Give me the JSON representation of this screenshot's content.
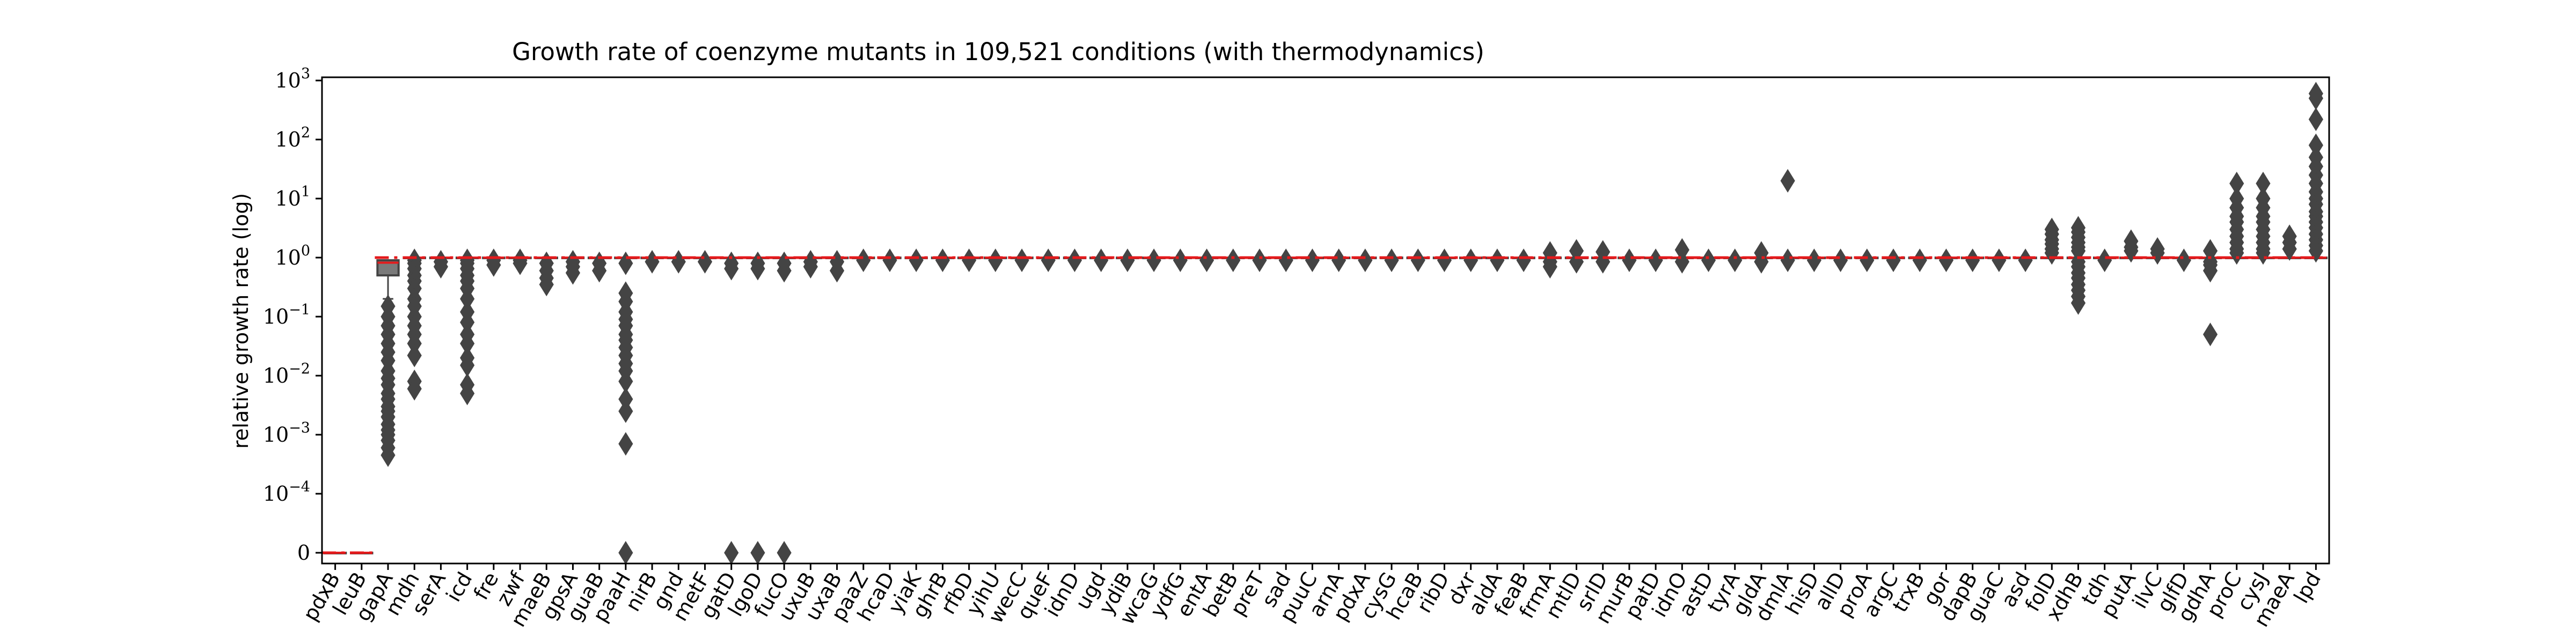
{
  "chart_data": {
    "type": "box",
    "title": "Growth rate of coenzyme mutants in 109,521 conditions (with thermodynamics)",
    "ylabel": "relative growth rate (log)",
    "xlabel": "",
    "yscale": "symlog",
    "ylim": [
      0,
      1000
    ],
    "yticks": [
      {
        "value": 0,
        "base": "0",
        "exp": ""
      },
      {
        "value": 0.0001,
        "base": "10",
        "exp": "−4"
      },
      {
        "value": 0.001,
        "base": "10",
        "exp": "−3"
      },
      {
        "value": 0.01,
        "base": "10",
        "exp": "−2"
      },
      {
        "value": 0.1,
        "base": "10",
        "exp": "−1"
      },
      {
        "value": 1,
        "base": "10",
        "exp": "0"
      },
      {
        "value": 10,
        "base": "10",
        "exp": "1"
      },
      {
        "value": 100,
        "base": "10",
        "exp": "2"
      },
      {
        "value": 1000,
        "base": "10",
        "exp": "3"
      }
    ],
    "reference_line": {
      "value": 1,
      "color": "#e41a1c"
    },
    "colors": {
      "box_fill": "#7a7a7a",
      "box_edge": "#444444",
      "outlier": "#444444",
      "median": "#e41a1c"
    },
    "categories": [
      "pdxB",
      "leuB",
      "gapA",
      "mdh",
      "serA",
      "icd",
      "fre",
      "zwf",
      "maeB",
      "gpsA",
      "guaB",
      "paaH",
      "nirB",
      "gnd",
      "metF",
      "gatD",
      "lgoD",
      "fucO",
      "uxuB",
      "uxaB",
      "paaZ",
      "hcaD",
      "yiaK",
      "ghrB",
      "rfbD",
      "yihU",
      "wecC",
      "queF",
      "idnD",
      "ugd",
      "ydiB",
      "wcaG",
      "ydfG",
      "entA",
      "betB",
      "preT",
      "sad",
      "puuC",
      "arnA",
      "pdxA",
      "cysG",
      "hcaB",
      "ribD",
      "dxr",
      "aldA",
      "feaB",
      "frmA",
      "mtlD",
      "srlD",
      "murB",
      "patD",
      "idnO",
      "astD",
      "tyrA",
      "gldA",
      "dmlA",
      "hisD",
      "allD",
      "proA",
      "argC",
      "trxB",
      "gor",
      "dapB",
      "guaC",
      "asd",
      "folD",
      "xdhB",
      "tdh",
      "putA",
      "ilvC",
      "glfD",
      "gdhA",
      "proC",
      "cysJ",
      "maeA",
      "lpd"
    ],
    "boxes": [
      {
        "q1": 0,
        "median": 0,
        "q3": 0,
        "whislo": 0,
        "whishi": 0,
        "outliers": []
      },
      {
        "q1": 0,
        "median": 0,
        "q3": 0,
        "whislo": 0,
        "whishi": 0,
        "outliers": []
      },
      {
        "q1": 0.5,
        "median": 0.82,
        "q3": 0.9,
        "whislo": 0.2,
        "whishi": 0.9,
        "outliers": [
          0.15,
          0.1,
          0.07,
          0.05,
          0.035,
          0.025,
          0.018,
          0.012,
          0.009,
          0.007,
          0.005,
          0.004,
          0.003,
          0.0025,
          0.002,
          0.0015,
          0.0012,
          0.001,
          0.0008,
          0.0006,
          0.00045
        ]
      },
      {
        "q1": 1,
        "median": 1,
        "q3": 1,
        "whislo": 1,
        "whishi": 1,
        "outliers": [
          0.9,
          0.8,
          0.65,
          0.5,
          0.4,
          0.3,
          0.2,
          0.15,
          0.1,
          0.07,
          0.05,
          0.035,
          0.022,
          0.008,
          0.006
        ]
      },
      {
        "q1": 1,
        "median": 1,
        "q3": 1,
        "whislo": 1,
        "whishi": 1,
        "outliers": [
          0.85,
          0.7
        ]
      },
      {
        "q1": 1,
        "median": 1,
        "q3": 1,
        "whislo": 1,
        "whishi": 1,
        "outliers": [
          0.9,
          0.8,
          0.65,
          0.5,
          0.4,
          0.3,
          0.2,
          0.12,
          0.08,
          0.05,
          0.035,
          0.02,
          0.015,
          0.007,
          0.005
        ]
      },
      {
        "q1": 1,
        "median": 1,
        "q3": 1,
        "whislo": 1,
        "whishi": 1,
        "outliers": [
          0.9,
          0.75
        ]
      },
      {
        "q1": 1,
        "median": 1,
        "q3": 1,
        "whislo": 1,
        "whishi": 1,
        "outliers": [
          0.9,
          0.8
        ]
      },
      {
        "q1": 1,
        "median": 1,
        "q3": 1,
        "whislo": 1,
        "whishi": 1,
        "outliers": [
          0.8,
          0.6,
          0.45,
          0.35
        ]
      },
      {
        "q1": 1,
        "median": 1,
        "q3": 1,
        "whislo": 1,
        "whishi": 1,
        "outliers": [
          0.85,
          0.7,
          0.55
        ]
      },
      {
        "q1": 1,
        "median": 1,
        "q3": 1,
        "whislo": 1,
        "whishi": 1,
        "outliers": [
          0.8,
          0.6
        ]
      },
      {
        "q1": 1,
        "median": 1,
        "q3": 1,
        "whislo": 1,
        "whishi": 1,
        "outliers": [
          0.8,
          0.25,
          0.18,
          0.12,
          0.09,
          0.07,
          0.05,
          0.04,
          0.03,
          0.022,
          0.016,
          0.012,
          0.008,
          0.004,
          0.0025,
          0.0007,
          0
        ]
      },
      {
        "q1": 1,
        "median": 1,
        "q3": 1,
        "whislo": 1,
        "whishi": 1,
        "outliers": [
          0.85
        ]
      },
      {
        "q1": 1,
        "median": 1,
        "q3": 1,
        "whislo": 1,
        "whishi": 1,
        "outliers": [
          0.85
        ]
      },
      {
        "q1": 1,
        "median": 1,
        "q3": 1,
        "whislo": 1,
        "whishi": 1,
        "outliers": [
          0.85
        ]
      },
      {
        "q1": 1,
        "median": 1,
        "q3": 1,
        "whislo": 1,
        "whishi": 1,
        "outliers": [
          0.8,
          0.65,
          0
        ]
      },
      {
        "q1": 1,
        "median": 1,
        "q3": 1,
        "whislo": 1,
        "whishi": 1,
        "outliers": [
          0.8,
          0.65,
          0
        ]
      },
      {
        "q1": 1,
        "median": 1,
        "q3": 1,
        "whislo": 1,
        "whishi": 1,
        "outliers": [
          0.8,
          0.6,
          0
        ]
      },
      {
        "q1": 1,
        "median": 1,
        "q3": 1,
        "whislo": 1,
        "whishi": 1,
        "outliers": [
          0.85,
          0.7
        ]
      },
      {
        "q1": 1,
        "median": 1,
        "q3": 1,
        "whislo": 1,
        "whishi": 1,
        "outliers": [
          0.85,
          0.6
        ]
      },
      {
        "q1": 1,
        "median": 1,
        "q3": 1,
        "whislo": 1,
        "whishi": 1,
        "outliers": [
          0.9
        ]
      },
      {
        "q1": 1,
        "median": 1,
        "q3": 1,
        "whislo": 1,
        "whishi": 1,
        "outliers": [
          0.9
        ]
      },
      {
        "q1": 1,
        "median": 1,
        "q3": 1,
        "whislo": 1,
        "whishi": 1,
        "outliers": [
          0.9
        ]
      },
      {
        "q1": 1,
        "median": 1,
        "q3": 1,
        "whislo": 1,
        "whishi": 1,
        "outliers": [
          0.9
        ]
      },
      {
        "q1": 1,
        "median": 1,
        "q3": 1,
        "whislo": 1,
        "whishi": 1,
        "outliers": [
          0.9
        ]
      },
      {
        "q1": 1,
        "median": 1,
        "q3": 1,
        "whislo": 1,
        "whishi": 1,
        "outliers": [
          0.9
        ]
      },
      {
        "q1": 1,
        "median": 1,
        "q3": 1,
        "whislo": 1,
        "whishi": 1,
        "outliers": [
          0.9
        ]
      },
      {
        "q1": 1,
        "median": 1,
        "q3": 1,
        "whislo": 1,
        "whishi": 1,
        "outliers": [
          0.9
        ]
      },
      {
        "q1": 1,
        "median": 1,
        "q3": 1,
        "whislo": 1,
        "whishi": 1,
        "outliers": [
          0.9
        ]
      },
      {
        "q1": 1,
        "median": 1,
        "q3": 1,
        "whislo": 1,
        "whishi": 1,
        "outliers": [
          0.9
        ]
      },
      {
        "q1": 1,
        "median": 1,
        "q3": 1,
        "whislo": 1,
        "whishi": 1,
        "outliers": [
          0.9
        ]
      },
      {
        "q1": 1,
        "median": 1,
        "q3": 1,
        "whislo": 1,
        "whishi": 1,
        "outliers": [
          0.9
        ]
      },
      {
        "q1": 1,
        "median": 1,
        "q3": 1,
        "whislo": 1,
        "whishi": 1,
        "outliers": [
          0.9
        ]
      },
      {
        "q1": 1,
        "median": 1,
        "q3": 1,
        "whislo": 1,
        "whishi": 1,
        "outliers": [
          0.9
        ]
      },
      {
        "q1": 1,
        "median": 1,
        "q3": 1,
        "whislo": 1,
        "whishi": 1,
        "outliers": [
          0.9
        ]
      },
      {
        "q1": 1,
        "median": 1,
        "q3": 1,
        "whislo": 1,
        "whishi": 1,
        "outliers": [
          0.9
        ]
      },
      {
        "q1": 1,
        "median": 1,
        "q3": 1,
        "whislo": 1,
        "whishi": 1,
        "outliers": [
          0.9
        ]
      },
      {
        "q1": 1,
        "median": 1,
        "q3": 1,
        "whislo": 1,
        "whishi": 1,
        "outliers": [
          0.9
        ]
      },
      {
        "q1": 1,
        "median": 1,
        "q3": 1,
        "whislo": 1,
        "whishi": 1,
        "outliers": [
          0.9
        ]
      },
      {
        "q1": 1,
        "median": 1,
        "q3": 1,
        "whislo": 1,
        "whishi": 1,
        "outliers": [
          0.9
        ]
      },
      {
        "q1": 1,
        "median": 1,
        "q3": 1,
        "whislo": 1,
        "whishi": 1,
        "outliers": [
          0.9
        ]
      },
      {
        "q1": 1,
        "median": 1,
        "q3": 1,
        "whislo": 1,
        "whishi": 1,
        "outliers": [
          0.9
        ]
      },
      {
        "q1": 1,
        "median": 1,
        "q3": 1,
        "whislo": 1,
        "whishi": 1,
        "outliers": [
          0.9
        ]
      },
      {
        "q1": 1,
        "median": 1,
        "q3": 1,
        "whislo": 1,
        "whishi": 1,
        "outliers": [
          0.9
        ]
      },
      {
        "q1": 1,
        "median": 1,
        "q3": 1,
        "whislo": 1,
        "whishi": 1,
        "outliers": [
          0.9
        ]
      },
      {
        "q1": 1,
        "median": 1,
        "q3": 1,
        "whislo": 1,
        "whishi": 1,
        "outliers": [
          0.9
        ]
      },
      {
        "q1": 1,
        "median": 1,
        "q3": 1,
        "whislo": 1,
        "whishi": 1,
        "outliers": [
          1.2,
          0.85,
          0.7
        ]
      },
      {
        "q1": 1,
        "median": 1,
        "q3": 1,
        "whislo": 1,
        "whishi": 1,
        "outliers": [
          1.3,
          0.85
        ]
      },
      {
        "q1": 1,
        "median": 1,
        "q3": 1,
        "whislo": 1,
        "whishi": 1,
        "outliers": [
          1.25,
          0.85
        ]
      },
      {
        "q1": 1,
        "median": 1,
        "q3": 1,
        "whislo": 1,
        "whishi": 1,
        "outliers": [
          0.9
        ]
      },
      {
        "q1": 1,
        "median": 1,
        "q3": 1,
        "whislo": 1,
        "whishi": 1,
        "outliers": [
          0.9
        ]
      },
      {
        "q1": 1,
        "median": 1,
        "q3": 1,
        "whislo": 1,
        "whishi": 1,
        "outliers": [
          1.35,
          0.85
        ]
      },
      {
        "q1": 1,
        "median": 1,
        "q3": 1,
        "whislo": 1,
        "whishi": 1,
        "outliers": [
          0.9
        ]
      },
      {
        "q1": 1,
        "median": 1,
        "q3": 1,
        "whislo": 1,
        "whishi": 1,
        "outliers": [
          0.9
        ]
      },
      {
        "q1": 1,
        "median": 1,
        "q3": 1,
        "whislo": 1,
        "whishi": 1,
        "outliers": [
          1.2,
          0.85
        ]
      },
      {
        "q1": 1,
        "median": 1,
        "q3": 1,
        "whislo": 1,
        "whishi": 1,
        "outliers": [
          20,
          0.9
        ]
      },
      {
        "q1": 1,
        "median": 1,
        "q3": 1,
        "whislo": 1,
        "whishi": 1,
        "outliers": [
          0.9
        ]
      },
      {
        "q1": 1,
        "median": 1,
        "q3": 1,
        "whislo": 1,
        "whishi": 1,
        "outliers": [
          0.9
        ]
      },
      {
        "q1": 1,
        "median": 1,
        "q3": 1,
        "whislo": 1,
        "whishi": 1,
        "outliers": [
          0.9
        ]
      },
      {
        "q1": 1,
        "median": 1,
        "q3": 1,
        "whislo": 1,
        "whishi": 1,
        "outliers": [
          0.9
        ]
      },
      {
        "q1": 1,
        "median": 1,
        "q3": 1,
        "whislo": 1,
        "whishi": 1,
        "outliers": [
          0.9
        ]
      },
      {
        "q1": 1,
        "median": 1,
        "q3": 1,
        "whislo": 1,
        "whishi": 1,
        "outliers": [
          0.9
        ]
      },
      {
        "q1": 1,
        "median": 1,
        "q3": 1,
        "whislo": 1,
        "whishi": 1,
        "outliers": [
          0.9
        ]
      },
      {
        "q1": 1,
        "median": 1,
        "q3": 1,
        "whislo": 1,
        "whishi": 1,
        "outliers": [
          0.9
        ]
      },
      {
        "q1": 1,
        "median": 1,
        "q3": 1,
        "whislo": 1,
        "whishi": 1,
        "outliers": [
          0.9
        ]
      },
      {
        "q1": 1,
        "median": 1,
        "q3": 1,
        "whislo": 1,
        "whishi": 1,
        "outliers": [
          3,
          2.5,
          2,
          1.7,
          1.4,
          1.2
        ]
      },
      {
        "q1": 1,
        "median": 1,
        "q3": 1,
        "whislo": 1,
        "whishi": 1,
        "outliers": [
          3.2,
          2.7,
          2.2,
          1.8,
          1.5,
          1.3,
          0.85,
          0.7,
          0.55,
          0.45,
          0.35,
          0.28,
          0.22,
          0.17
        ]
      },
      {
        "q1": 1,
        "median": 1,
        "q3": 1,
        "whislo": 1,
        "whishi": 1,
        "outliers": [
          0.9
        ]
      },
      {
        "q1": 1,
        "median": 1,
        "q3": 1,
        "whislo": 1,
        "whishi": 1,
        "outliers": [
          1.9,
          1.5,
          1.3
        ]
      },
      {
        "q1": 1,
        "median": 1,
        "q3": 1,
        "whislo": 1,
        "whishi": 1,
        "outliers": [
          1.4,
          1.2
        ]
      },
      {
        "q1": 1,
        "median": 1,
        "q3": 1,
        "whislo": 1,
        "whishi": 1,
        "outliers": [
          0.9
        ]
      },
      {
        "q1": 1,
        "median": 1,
        "q3": 1,
        "whislo": 1,
        "whishi": 1,
        "outliers": [
          1.3,
          0.85,
          0.75,
          0.6,
          0.05
        ]
      },
      {
        "q1": 1,
        "median": 1,
        "q3": 1,
        "whislo": 1,
        "whishi": 1,
        "outliers": [
          18,
          10,
          7,
          5,
          4,
          3,
          2.3,
          1.8,
          1.4,
          1.2
        ]
      },
      {
        "q1": 1,
        "median": 1,
        "q3": 1,
        "whislo": 1,
        "whishi": 1,
        "outliers": [
          18,
          10,
          7,
          5,
          4,
          3,
          2.3,
          1.8,
          1.4,
          1.2
        ]
      },
      {
        "q1": 1,
        "median": 1,
        "q3": 1,
        "whislo": 1,
        "whishi": 1,
        "outliers": [
          2.3,
          1.8,
          1.4
        ]
      },
      {
        "q1": 1,
        "median": 1,
        "q3": 1,
        "whislo": 1,
        "whishi": 1,
        "outliers": [
          600,
          500,
          220,
          80,
          50,
          35,
          25,
          18,
          13,
          10,
          8,
          6,
          5,
          4,
          3.2,
          2.5,
          2,
          1.6,
          1.3
        ]
      }
    ]
  }
}
